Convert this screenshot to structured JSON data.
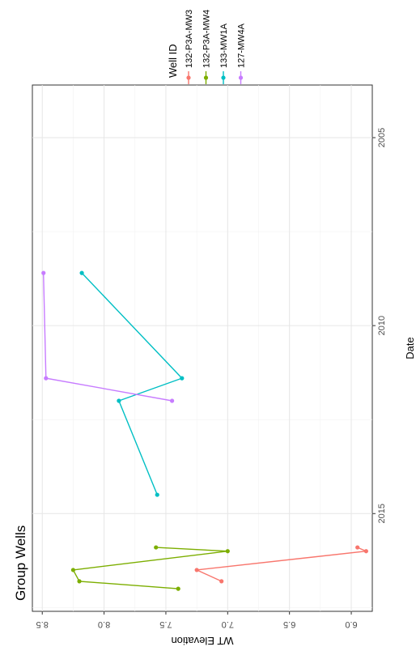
{
  "chart_data": {
    "type": "line",
    "title": "Group Wells",
    "xlabel": "Date",
    "ylabel": "WT Elevation",
    "x_ticks": [
      "2005",
      "2010",
      "2015"
    ],
    "y_ticks": [
      "6.0",
      "6.5",
      "7.0",
      "7.5",
      "8.0",
      "8.5"
    ],
    "xlim": [
      2003.6,
      2017.6
    ],
    "ylim": [
      5.83,
      8.58
    ],
    "y_reversed": true,
    "rotated": "90-clockwise",
    "grid": true,
    "legend_title": "Well ID",
    "legend_position": "top-right",
    "series": [
      {
        "name": "132-P3A-MW3",
        "color": "#F8766D",
        "x": [
          2015.9,
          2016.0,
          2016.5,
          2016.8
        ],
        "y": [
          5.95,
          5.88,
          7.25,
          7.05
        ]
      },
      {
        "name": "132-P3A-MW4",
        "color": "#7CAE00",
        "x": [
          2015.9,
          2016.0,
          2016.5,
          2016.8,
          2017.0
        ],
        "y": [
          7.58,
          7.0,
          8.25,
          8.2,
          7.4
        ]
      },
      {
        "name": "133-MW1A",
        "color": "#00BFC4",
        "x": [
          2008.6,
          2011.4,
          2012.0,
          2014.5
        ],
        "y": [
          8.18,
          7.37,
          7.88,
          7.57
        ]
      },
      {
        "name": "127-MW4A",
        "color": "#C77CFF",
        "x": [
          2008.6,
          2011.4,
          2012.0
        ],
        "y": [
          8.49,
          8.47,
          7.45
        ]
      }
    ]
  }
}
